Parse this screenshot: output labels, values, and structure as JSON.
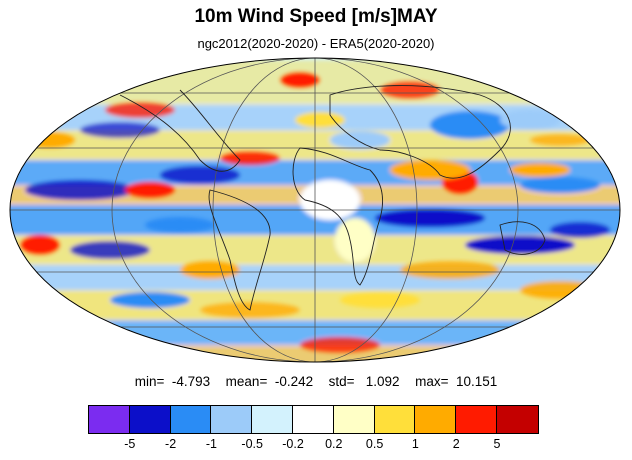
{
  "title": "10m Wind Speed [m/s]MAY",
  "subtitle": "ngc2012(2020-2020) - ERA5(2020-2020)",
  "stats": {
    "min": "min=  -4.793",
    "mean": "mean=  -0.242",
    "std": "std=   1.092",
    "max": "max=  10.151"
  },
  "colorbar": {
    "colors": [
      "#7b2cf0",
      "#0c0fc9",
      "#2a8cf5",
      "#9ccbf9",
      "#d3f2fd",
      "#ffffff",
      "#ffffc6",
      "#ffdf3a",
      "#ffab00",
      "#ff1b00",
      "#c40000"
    ],
    "tick_labels": [
      "-5",
      "-2",
      "-1",
      "-0.5",
      "-0.2",
      "0.2",
      "0.5",
      "1",
      "2",
      "5"
    ]
  },
  "map": {
    "projection": "mollweide",
    "graticule": true,
    "coastlines": true
  }
}
